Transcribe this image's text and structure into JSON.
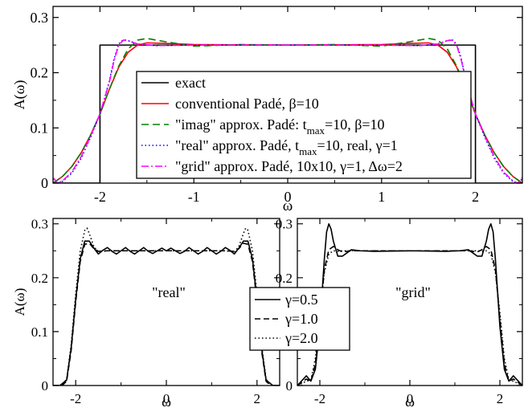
{
  "chart_data": [
    {
      "id": "top",
      "type": "line",
      "xlabel": "ω",
      "ylabel": "A(ω)",
      "xlim": [
        -2.5,
        2.5
      ],
      "ylim": [
        0,
        0.32
      ],
      "xticks": [
        -2,
        -1,
        0,
        1,
        2
      ],
      "xtick_labels": [
        "-2",
        "-1",
        "0",
        "1",
        "2"
      ],
      "yticks": [
        0,
        0.1,
        0.2,
        0.3
      ],
      "ytick_labels": [
        "0",
        "0.1",
        "0.2",
        "0.3"
      ],
      "grid": false,
      "legend_position": "center",
      "legend": [
        {
          "text": "exact"
        },
        {
          "text": "conventional Padé, β=10"
        },
        {
          "text": "\"imag\" approx. Padé: t",
          "sub": "max",
          "after": "=10, β=10"
        },
        {
          "text": "\"real\" approx. Padé, t",
          "sub": "max",
          "after": "=10, real, γ=1"
        },
        {
          "text": "\"grid\" approx. Padé, 10x10, γ=1, Δω=2"
        }
      ],
      "series": [
        {
          "color": "#000000",
          "dash": "solid",
          "x": [
            -2.5,
            -2.0,
            -2.0,
            2.0,
            2.0,
            2.5
          ],
          "y": [
            0,
            0,
            0.25,
            0.25,
            0,
            0
          ]
        },
        {
          "color": "#ff0000",
          "dash": "solid",
          "x": [
            -2.5,
            -2.4,
            -2.3,
            -2.2,
            -2.1,
            -2.0,
            -1.9,
            -1.8,
            -1.7,
            -1.6,
            -1.5,
            -1.3,
            -1.0,
            0,
            1.0,
            1.3,
            1.5,
            1.6,
            1.7,
            1.8,
            1.9,
            2.0,
            2.1,
            2.2,
            2.3,
            2.4,
            2.5
          ],
          "y": [
            0.0,
            0.012,
            0.03,
            0.055,
            0.087,
            0.125,
            0.17,
            0.21,
            0.237,
            0.25,
            0.254,
            0.253,
            0.251,
            0.25,
            0.251,
            0.253,
            0.254,
            0.25,
            0.237,
            0.21,
            0.17,
            0.125,
            0.087,
            0.055,
            0.03,
            0.012,
            0.0
          ]
        },
        {
          "color": "#008000",
          "dash": "9,5",
          "x": [
            -2.5,
            -2.4,
            -2.3,
            -2.2,
            -2.1,
            -2.0,
            -1.9,
            -1.8,
            -1.7,
            -1.6,
            -1.5,
            -1.3,
            -1.0,
            -0.5,
            0,
            0.5,
            1.0,
            1.3,
            1.5,
            1.6,
            1.7,
            1.8,
            1.9,
            2.0,
            2.1,
            2.2,
            2.3,
            2.4,
            2.5
          ],
          "y": [
            0.0,
            0.012,
            0.03,
            0.055,
            0.087,
            0.125,
            0.17,
            0.212,
            0.243,
            0.259,
            0.262,
            0.256,
            0.248,
            0.251,
            0.25,
            0.251,
            0.248,
            0.256,
            0.262,
            0.259,
            0.243,
            0.212,
            0.17,
            0.125,
            0.087,
            0.055,
            0.03,
            0.012,
            0.0
          ]
        },
        {
          "color": "#0000ff",
          "dash": "1.5,3",
          "x": [
            -2.5,
            -2.45,
            -2.4,
            -2.3,
            -2.2,
            -2.1,
            -2.0,
            -1.9,
            -1.85,
            -1.8,
            -1.75,
            -1.7,
            -1.6,
            -1.4,
            -1.0,
            0,
            1.0,
            1.4,
            1.6,
            1.7,
            1.75,
            1.8,
            1.85,
            1.9,
            2.0,
            2.1,
            2.2,
            2.3,
            2.4,
            2.45,
            2.5
          ],
          "y": [
            0.008,
            0.0,
            0.003,
            0.018,
            0.045,
            0.083,
            0.125,
            0.185,
            0.225,
            0.252,
            0.26,
            0.258,
            0.252,
            0.249,
            0.25,
            0.25,
            0.25,
            0.249,
            0.252,
            0.258,
            0.26,
            0.252,
            0.225,
            0.185,
            0.125,
            0.083,
            0.045,
            0.018,
            0.003,
            0.0,
            0.008
          ]
        },
        {
          "color": "#ff00ff",
          "dash": "9,3,2,3",
          "x": [
            -2.5,
            -2.45,
            -2.4,
            -2.3,
            -2.2,
            -2.1,
            -2.0,
            -1.9,
            -1.85,
            -1.8,
            -1.75,
            -1.7,
            -1.6,
            -1.4,
            -1.0,
            0,
            1.0,
            1.4,
            1.6,
            1.7,
            1.75,
            1.8,
            1.85,
            1.9,
            2.0,
            2.1,
            2.2,
            2.3,
            2.4,
            2.45,
            2.5
          ],
          "y": [
            0.01,
            0.0,
            0.004,
            0.02,
            0.048,
            0.085,
            0.125,
            0.183,
            0.222,
            0.25,
            0.259,
            0.258,
            0.252,
            0.249,
            0.25,
            0.25,
            0.25,
            0.249,
            0.252,
            0.258,
            0.259,
            0.25,
            0.222,
            0.183,
            0.125,
            0.085,
            0.048,
            0.02,
            0.004,
            0.0,
            0.01
          ]
        }
      ]
    },
    {
      "id": "bottom-left",
      "type": "line",
      "xlabel": "ω",
      "ylabel": "A(ω)",
      "xlim": [
        -2.5,
        2.5
      ],
      "ylim": [
        0,
        0.31
      ],
      "xticks": [
        -2,
        0,
        2
      ],
      "xtick_labels": [
        "-2",
        "0",
        "2"
      ],
      "yticks": [
        0,
        0.1,
        0.2,
        0.3
      ],
      "ytick_labels": [
        "0",
        "0.1",
        "0.2",
        "0.3"
      ],
      "grid": false,
      "annotation": "\"real\"",
      "series": [
        {
          "color": "#000000",
          "dash": "solid",
          "x": [
            -2.5,
            -2.35,
            -2.2,
            -2.1,
            -2.0,
            -1.9,
            -1.8,
            -1.7,
            -1.6,
            -1.5,
            -1.4,
            -1.3,
            -1.2,
            -1.1,
            -1.0,
            -0.9,
            -0.8,
            -0.7,
            -0.6,
            -0.5,
            -0.4,
            -0.3,
            -0.2,
            -0.1,
            0.0,
            0.1,
            0.2,
            0.3,
            0.4,
            0.5,
            0.6,
            0.7,
            0.8,
            0.9,
            1.0,
            1.1,
            1.2,
            1.3,
            1.4,
            1.5,
            1.6,
            1.7,
            1.8,
            1.9,
            2.0,
            2.1,
            2.2,
            2.35,
            2.5
          ],
          "y": [
            0.0,
            0.0,
            0.01,
            0.07,
            0.16,
            0.235,
            0.268,
            0.268,
            0.255,
            0.244,
            0.251,
            0.256,
            0.249,
            0.244,
            0.25,
            0.256,
            0.249,
            0.244,
            0.25,
            0.256,
            0.249,
            0.245,
            0.25,
            0.255,
            0.25,
            0.255,
            0.25,
            0.245,
            0.249,
            0.256,
            0.25,
            0.244,
            0.249,
            0.256,
            0.25,
            0.244,
            0.249,
            0.256,
            0.251,
            0.244,
            0.255,
            0.268,
            0.268,
            0.235,
            0.16,
            0.07,
            0.01,
            0.0,
            0.0
          ]
        },
        {
          "color": "#000000",
          "dash": "7,4",
          "x": [
            -2.5,
            -2.3,
            -2.2,
            -2.1,
            -2.0,
            -1.9,
            -1.8,
            -1.7,
            -1.6,
            -1.5,
            -1.3,
            -1.0,
            0,
            1.0,
            1.3,
            1.5,
            1.6,
            1.7,
            1.8,
            1.9,
            2.0,
            2.1,
            2.2,
            2.3,
            2.5
          ],
          "y": [
            0.0,
            0.0,
            0.008,
            0.065,
            0.155,
            0.23,
            0.262,
            0.264,
            0.254,
            0.249,
            0.25,
            0.25,
            0.25,
            0.25,
            0.25,
            0.249,
            0.254,
            0.264,
            0.262,
            0.23,
            0.155,
            0.065,
            0.008,
            0.0,
            0.0
          ]
        },
        {
          "color": "#000000",
          "dash": "1.5,3",
          "x": [
            -2.5,
            -2.3,
            -2.2,
            -2.1,
            -2.0,
            -1.9,
            -1.8,
            -1.75,
            -1.7,
            -1.6,
            -1.5,
            -1.3,
            -1.0,
            0,
            1.0,
            1.3,
            1.5,
            1.6,
            1.7,
            1.75,
            1.8,
            1.9,
            2.0,
            2.1,
            2.2,
            2.3,
            2.5
          ],
          "y": [
            0.0,
            0.0,
            0.012,
            0.075,
            0.17,
            0.25,
            0.288,
            0.292,
            0.282,
            0.258,
            0.248,
            0.25,
            0.25,
            0.25,
            0.25,
            0.25,
            0.248,
            0.258,
            0.282,
            0.292,
            0.288,
            0.25,
            0.17,
            0.075,
            0.012,
            0.0,
            0.0
          ]
        }
      ]
    },
    {
      "id": "bottom-right",
      "type": "line",
      "xlabel": "ω",
      "ylabel": "",
      "xlim": [
        -2.5,
        2.5
      ],
      "ylim": [
        0,
        0.31
      ],
      "xticks": [
        -2,
        0,
        2
      ],
      "xtick_labels": [
        "-2",
        "0",
        "2"
      ],
      "yticks": [
        0,
        0.1,
        0.2,
        0.3
      ],
      "ytick_labels": [
        "0",
        "0.1",
        "0.2",
        "0.3"
      ],
      "grid": false,
      "annotation": "\"grid\"",
      "series": [
        {
          "color": "#000000",
          "dash": "solid",
          "x": [
            -2.5,
            -2.3,
            -2.2,
            -2.1,
            -2.0,
            -1.9,
            -1.85,
            -1.8,
            -1.75,
            -1.7,
            -1.6,
            -1.5,
            -1.4,
            -1.3,
            -1.1,
            -0.8,
            0,
            0.8,
            1.1,
            1.3,
            1.4,
            1.5,
            1.6,
            1.7,
            1.75,
            1.8,
            1.85,
            1.9,
            2.0,
            2.1,
            2.2,
            2.3,
            2.5
          ],
          "y": [
            0.0,
            0.018,
            0.008,
            0.03,
            0.11,
            0.235,
            0.285,
            0.3,
            0.29,
            0.268,
            0.24,
            0.24,
            0.246,
            0.252,
            0.25,
            0.249,
            0.25,
            0.249,
            0.25,
            0.252,
            0.246,
            0.24,
            0.24,
            0.268,
            0.29,
            0.3,
            0.285,
            0.235,
            0.11,
            0.03,
            0.008,
            0.018,
            0.0
          ]
        },
        {
          "color": "#000000",
          "dash": "7,4",
          "x": [
            -2.5,
            -2.3,
            -2.2,
            -2.1,
            -2.0,
            -1.9,
            -1.8,
            -1.7,
            -1.6,
            -1.5,
            -1.3,
            -1.0,
            0,
            1.0,
            1.3,
            1.5,
            1.6,
            1.7,
            1.8,
            1.9,
            2.0,
            2.1,
            2.2,
            2.3,
            2.5
          ],
          "y": [
            0.0,
            0.012,
            0.008,
            0.04,
            0.125,
            0.215,
            0.252,
            0.258,
            0.252,
            0.248,
            0.25,
            0.25,
            0.25,
            0.25,
            0.25,
            0.248,
            0.252,
            0.258,
            0.252,
            0.215,
            0.125,
            0.04,
            0.008,
            0.012,
            0.0
          ]
        },
        {
          "color": "#000000",
          "dash": "1.5,3",
          "x": [
            -2.5,
            -2.3,
            -2.2,
            -2.1,
            -2.0,
            -1.9,
            -1.8,
            -1.7,
            -1.6,
            -1.5,
            -1.3,
            -1.0,
            0,
            1.0,
            1.3,
            1.5,
            1.6,
            1.7,
            1.8,
            1.9,
            2.0,
            2.1,
            2.2,
            2.3,
            2.5
          ],
          "y": [
            0.0,
            0.008,
            0.01,
            0.05,
            0.135,
            0.21,
            0.244,
            0.25,
            0.249,
            0.25,
            0.25,
            0.25,
            0.25,
            0.25,
            0.25,
            0.25,
            0.249,
            0.25,
            0.244,
            0.21,
            0.135,
            0.05,
            0.01,
            0.008,
            0.0
          ]
        }
      ]
    }
  ],
  "shared_legend": [
    {
      "text": "γ=0.5",
      "dash": "solid"
    },
    {
      "text": "γ=1.0",
      "dash": "7,4"
    },
    {
      "text": "γ=2.0",
      "dash": "1.5,3"
    }
  ]
}
